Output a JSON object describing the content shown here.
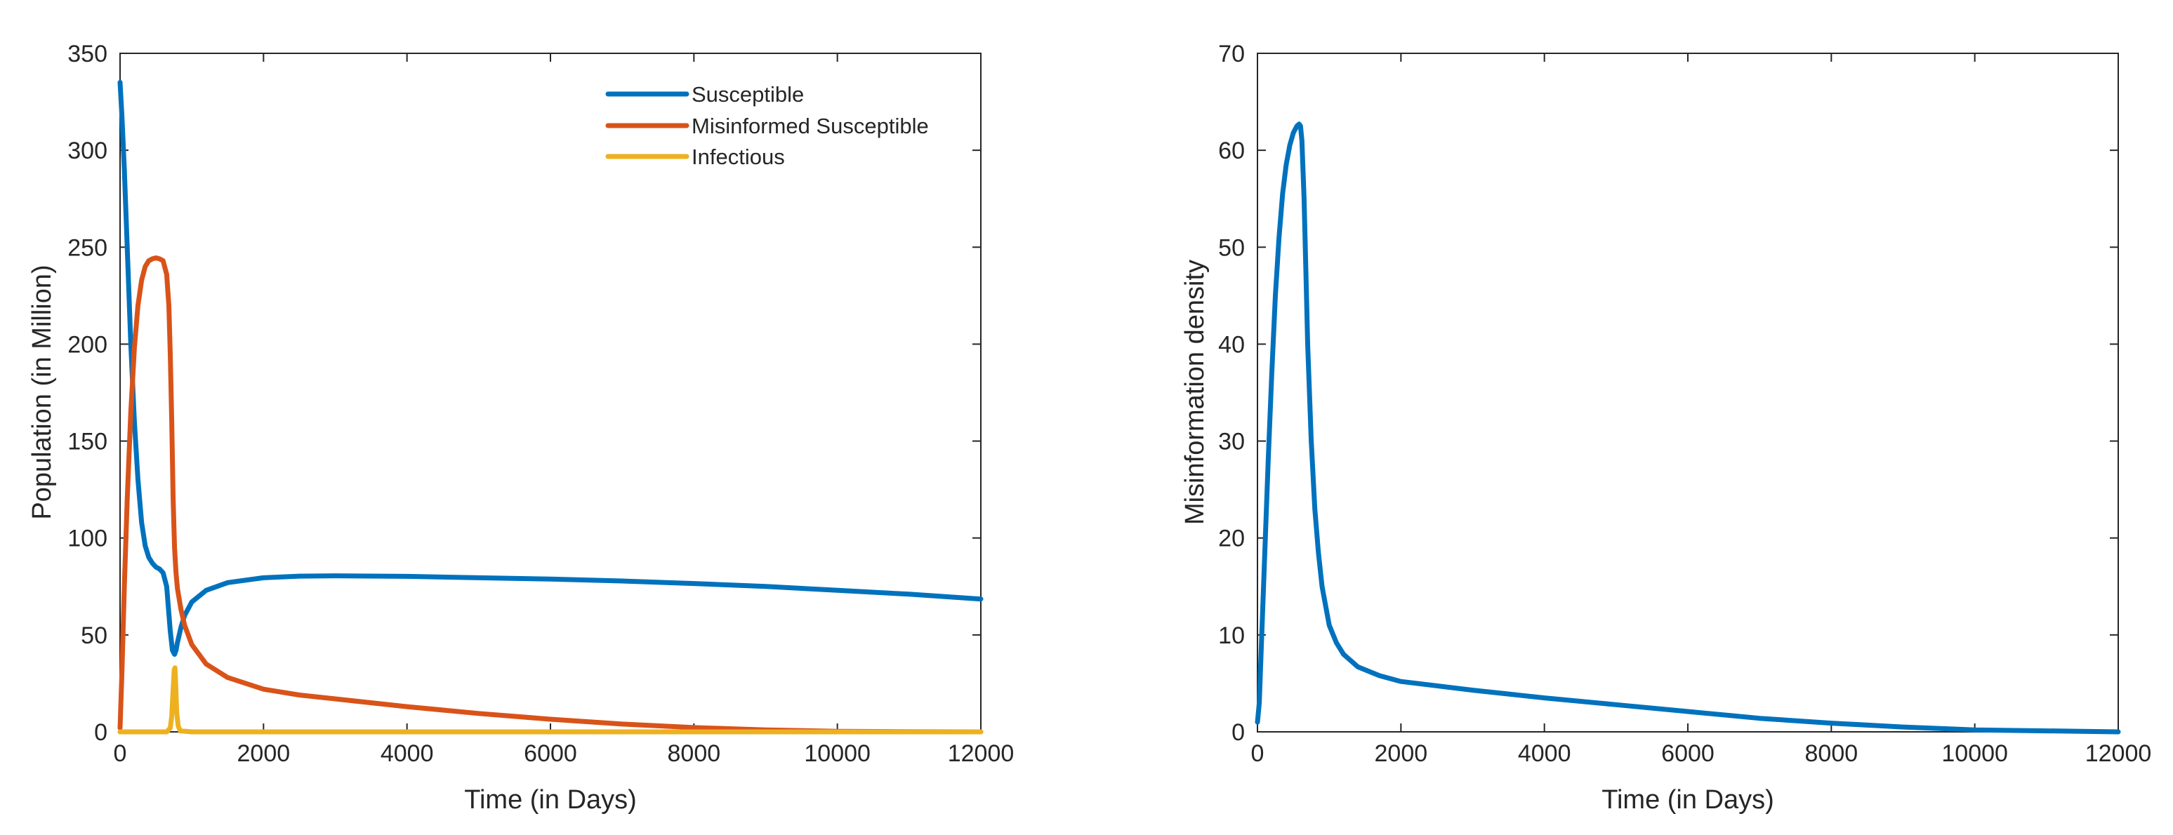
{
  "colors": {
    "axis": "#262626",
    "background": "#ffffff"
  },
  "chart_data": [
    {
      "type": "line",
      "title": "",
      "xlabel": "Time (in Days)",
      "ylabel": "Population (in Million)",
      "xlim": [
        0,
        12000
      ],
      "ylim": [
        0,
        350
      ],
      "xticks": [
        0,
        2000,
        4000,
        6000,
        8000,
        10000,
        12000
      ],
      "yticks": [
        0,
        50,
        100,
        150,
        200,
        250,
        300,
        350
      ],
      "grid": false,
      "legend_location": "top-right",
      "series": [
        {
          "name": "Susceptible",
          "color": "#0072BD",
          "x": [
            0,
            25,
            60,
            100,
            150,
            200,
            250,
            300,
            350,
            400,
            450,
            500,
            550,
            600,
            650,
            700,
            730,
            760,
            780,
            800,
            850,
            900,
            1000,
            1200,
            1500,
            2000,
            2500,
            3000,
            4000,
            5000,
            6000,
            7000,
            8000,
            9000,
            10000,
            11000,
            12000
          ],
          "y": [
            335,
            318,
            290,
            250,
            200,
            160,
            130,
            108,
            96,
            90,
            87,
            85,
            84,
            82,
            75,
            52,
            42,
            40,
            42,
            46,
            54,
            60,
            67,
            73,
            77,
            79.5,
            80.3,
            80.5,
            80.2,
            79.5,
            78.8,
            77.8,
            76.5,
            75,
            73,
            71,
            68.5
          ]
        },
        {
          "name": "Misinformed Susceptible",
          "color": "#D95319",
          "x": [
            0,
            25,
            60,
            100,
            150,
            200,
            250,
            300,
            350,
            400,
            450,
            500,
            550,
            600,
            650,
            680,
            700,
            720,
            740,
            760,
            780,
            800,
            850,
            900,
            1000,
            1200,
            1500,
            2000,
            2500,
            3000,
            4000,
            5000,
            6000,
            7000,
            8000,
            9000,
            10000,
            11000,
            12000
          ],
          "y": [
            2,
            30,
            75,
            120,
            165,
            198,
            220,
            233,
            240,
            243,
            244,
            244.5,
            244,
            243,
            236,
            220,
            195,
            160,
            120,
            95,
            82,
            74,
            63,
            55,
            45,
            35,
            28,
            22,
            19,
            17,
            13,
            9.5,
            6.5,
            4,
            2.2,
            1,
            0.3,
            0.1,
            0
          ]
        },
        {
          "name": "Infectious",
          "color": "#EDB120",
          "x": [
            0,
            650,
            700,
            720,
            740,
            755,
            765,
            775,
            790,
            810,
            840,
            1000,
            2000,
            4000,
            6000,
            8000,
            10000,
            12000
          ],
          "y": [
            0,
            0,
            2,
            8,
            22,
            32,
            33,
            25,
            10,
            3,
            0.5,
            0,
            0,
            0,
            0,
            0,
            0,
            0
          ]
        }
      ]
    },
    {
      "type": "line",
      "title": "",
      "xlabel": "Time (in Days)",
      "ylabel": "Misinformation density",
      "xlim": [
        0,
        12000
      ],
      "ylim": [
        0,
        70
      ],
      "xticks": [
        0,
        2000,
        4000,
        6000,
        8000,
        10000,
        12000
      ],
      "yticks": [
        0,
        10,
        20,
        30,
        40,
        50,
        60,
        70
      ],
      "grid": false,
      "legend_location": "none",
      "series": [
        {
          "name": "Misinformation density",
          "color": "#0072BD",
          "x": [
            0,
            25,
            50,
            100,
            150,
            200,
            250,
            300,
            350,
            400,
            450,
            500,
            550,
            580,
            600,
            620,
            650,
            680,
            700,
            750,
            800,
            850,
            900,
            1000,
            1100,
            1200,
            1400,
            1700,
            2000,
            3000,
            4000,
            5000,
            6000,
            7000,
            8000,
            9000,
            10000,
            11000,
            12000
          ],
          "y": [
            1,
            3,
            8,
            18,
            28,
            37,
            45,
            51,
            55.5,
            58.5,
            60.5,
            61.8,
            62.5,
            62.7,
            62.5,
            61,
            55,
            46,
            40,
            30,
            23,
            18.5,
            15,
            11,
            9.2,
            8,
            6.7,
            5.8,
            5.2,
            4.3,
            3.5,
            2.8,
            2.1,
            1.4,
            0.9,
            0.5,
            0.2,
            0.1,
            0
          ]
        }
      ]
    }
  ]
}
